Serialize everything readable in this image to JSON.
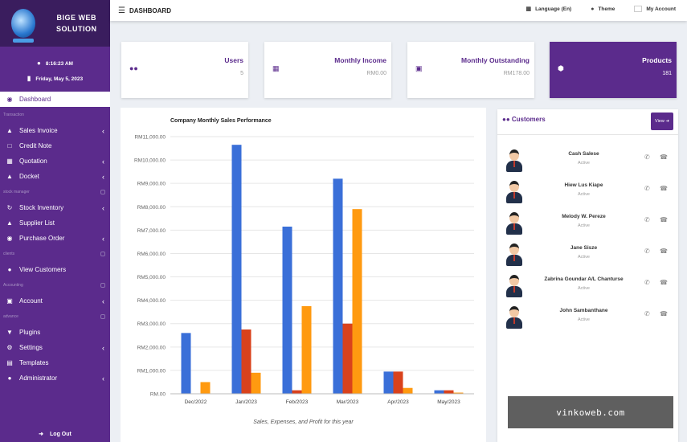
{
  "brand": {
    "name_line1": "BIGE WEB",
    "name_line2": "SOLUTION"
  },
  "clock": {
    "time": "8:16:23 AM",
    "date": "Friday, May 5, 2023"
  },
  "sidebar": {
    "dashboard": "Dashboard",
    "sec_transaction": "Transaction",
    "sales_invoice": "Sales Invoice",
    "credit_note": "Credit Note",
    "quotation": "Quotation",
    "docket": "Docket",
    "sec_stock": "stock manager",
    "stock_inventory": "Stock Inventory",
    "supplier_list": "Supplier List",
    "purchase_order": "Purchase Order",
    "sec_clients": "clients",
    "view_customers": "View Customers",
    "sec_accounting": "Accounting",
    "account": "Account",
    "sec_advance": "advance",
    "plugins": "Plugins",
    "settings": "Settings",
    "templates": "Templates",
    "administrator": "Administrator",
    "logout": "Log Out"
  },
  "topbar": {
    "title": "DASHBOARD",
    "language": "Language (En)",
    "theme": "Theme",
    "account": "My Account"
  },
  "cards": {
    "users": {
      "label": "Users",
      "value": "5"
    },
    "income": {
      "label": "Monthly Income",
      "value": "RM0.00"
    },
    "outstanding": {
      "label": "Monthly Outstanding",
      "value": "RM178.00"
    },
    "products": {
      "label": "Products",
      "value": "181"
    }
  },
  "chart_data": {
    "type": "bar",
    "title": "Company Monthly Sales Performance",
    "caption": "Sales, Expenses, and Profit for this year",
    "categories": [
      "Dec/2022",
      "Jan/2023",
      "Feb/2023",
      "Mar/2023",
      "Apr/2023",
      "May/2023"
    ],
    "ylim": [
      0,
      11000
    ],
    "yticks": [
      "RM.00",
      "RM1,000.00",
      "RM2,000.00",
      "RM3,000.00",
      "RM4,000.00",
      "RM5,000.00",
      "RM6,000.00",
      "RM7,000.00",
      "RM8,000.00",
      "RM9,000.00",
      "RM10,000.00",
      "RM11,000.00"
    ],
    "series": [
      {
        "color": "#3a6fd8",
        "values": [
          2600,
          10650,
          7150,
          9200,
          950,
          150
        ]
      },
      {
        "color": "#d9421c",
        "values": [
          0,
          2750,
          150,
          3000,
          950,
          150
        ]
      },
      {
        "color": "#ff9a10",
        "values": [
          500,
          900,
          3750,
          7900,
          250,
          50
        ]
      }
    ],
    "grid": true
  },
  "customers": {
    "title": "Customers",
    "view_label": "View",
    "list": [
      {
        "name": "Cash Salese",
        "status": "Active"
      },
      {
        "name": "Hiew Lus Kiape",
        "status": "Active"
      },
      {
        "name": "Melody W. Pereze",
        "status": "Active"
      },
      {
        "name": "Jane Sisze",
        "status": "Active"
      },
      {
        "name": "Zabrina Goundar A/L Chanturse",
        "status": "Active"
      },
      {
        "name": "John Sambanthane",
        "status": "Active"
      }
    ]
  },
  "watermark": "vinkoweb.com"
}
